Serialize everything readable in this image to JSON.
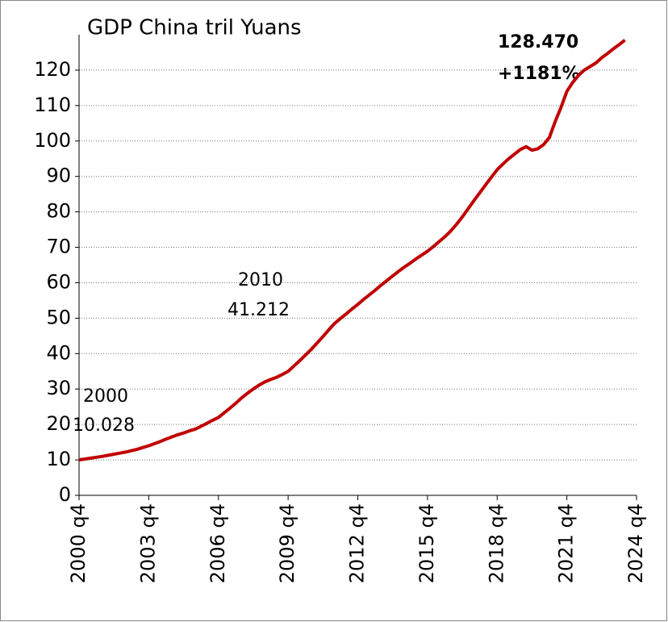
{
  "chart_data": {
    "type": "line",
    "title": "GDP   China tril Yuans",
    "annotations": [
      "2000",
      "10.028",
      "2010",
      "41.212",
      "128.470",
      "+1181%"
    ],
    "categories": [
      "2000 q4",
      null,
      null,
      null,
      null,
      null,
      null,
      null,
      null,
      null,
      null,
      null,
      "2003 q4",
      null,
      null,
      null,
      null,
      null,
      null,
      null,
      null,
      null,
      null,
      null,
      "2006 q4",
      null,
      null,
      null,
      null,
      null,
      null,
      null,
      null,
      null,
      null,
      null,
      "2009 q4",
      null,
      null,
      null,
      null,
      null,
      null,
      null,
      null,
      null,
      null,
      null,
      "2012 q4",
      null,
      null,
      null,
      null,
      null,
      null,
      null,
      null,
      null,
      null,
      null,
      "2015 q4",
      null,
      null,
      null,
      null,
      null,
      null,
      null,
      null,
      null,
      null,
      null,
      "2018 q4",
      null,
      null,
      null,
      null,
      null,
      null,
      null,
      null,
      null,
      null,
      null,
      "2021 q4",
      null,
      null,
      null,
      null,
      null,
      null,
      null,
      null,
      null,
      null,
      null,
      "2024 q4"
    ],
    "series": [
      {
        "name": "GDP",
        "color": "#c00000",
        "values": [
          10.028,
          10.25,
          10.5,
          10.75,
          11.0,
          11.3,
          11.6,
          11.9,
          12.2,
          12.6,
          13.0,
          13.5,
          14.0,
          14.6,
          15.2,
          15.9,
          16.5,
          17.1,
          17.6,
          18.2,
          18.7,
          19.5,
          20.3,
          21.2,
          22.0,
          23.3,
          24.6,
          26.0,
          27.5,
          28.8,
          30.0,
          31.1,
          32.0,
          32.7,
          33.3,
          34.1,
          35.0,
          36.5,
          38.0,
          39.6,
          41.212,
          43.0,
          44.8,
          46.7,
          48.5,
          49.9,
          51.2,
          52.6,
          53.9,
          55.3,
          56.6,
          57.9,
          59.3,
          60.6,
          61.9,
          63.2,
          64.4,
          65.5,
          66.7,
          67.8,
          68.9,
          70.2,
          71.6,
          73.0,
          74.6,
          76.5,
          78.6,
          80.9,
          83.2,
          85.4,
          87.6,
          89.8,
          91.9,
          93.5,
          95.0,
          96.3,
          97.6,
          98.4,
          97.4,
          97.8,
          99.0,
          101.0,
          105.5,
          109.5,
          114.0,
          116.5,
          118.5,
          120.0,
          121.0,
          122.0,
          123.5,
          124.7,
          126.0,
          127.2,
          128.47,
          null,
          null
        ]
      }
    ],
    "ylim": [
      0,
      130
    ],
    "yticks": [
      0,
      10,
      20,
      30,
      40,
      50,
      60,
      70,
      80,
      90,
      100,
      110,
      120
    ],
    "grid": true
  }
}
